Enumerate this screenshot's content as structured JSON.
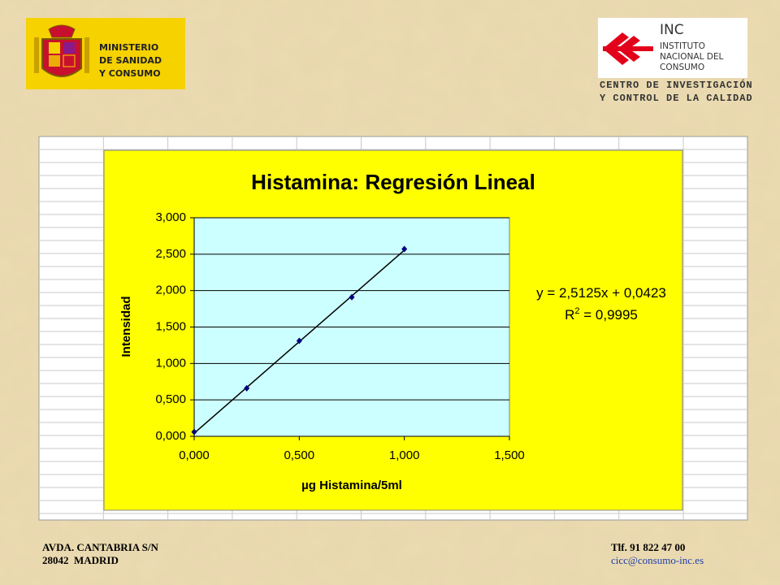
{
  "header": {
    "ministry": [
      "MINISTERIO",
      "DE SANIDAD",
      "Y CONSUMO"
    ],
    "inc": {
      "acronym": "INC",
      "name": [
        "INSTITUTO",
        "NACIONAL DEL",
        "CONSUMO"
      ]
    },
    "centre": [
      "CENTRO DE INVESTIGACIÓN",
      "Y CONTROL DE LA CALIDAD"
    ]
  },
  "chart_data": {
    "type": "scatter",
    "title": "Histamina: Regresión Lineal",
    "x_label": "µg Histamina/5ml",
    "y_label": "Intensidad",
    "x": [
      0,
      0.25,
      0.5,
      0.75,
      1
    ],
    "values": [
      0.06,
      0.66,
      1.31,
      1.91,
      2.57
    ],
    "color": "#000080",
    "xlim": [
      0,
      1.5
    ],
    "xticks": [
      {
        "value": 0,
        "label": "0,000"
      },
      {
        "value": 0.5,
        "label": "0,500"
      },
      {
        "value": 1,
        "label": "1,000"
      },
      {
        "value": 1.5,
        "label": "1,500"
      }
    ],
    "ylim": [
      0,
      3
    ],
    "yticks": [
      {
        "value": 0,
        "label": "0,000"
      },
      {
        "value": 0.5,
        "label": "0,500"
      },
      {
        "value": 1,
        "label": "1,000"
      },
      {
        "value": 1.5,
        "label": "1,500"
      },
      {
        "value": 2,
        "label": "2,000"
      },
      {
        "value": 2.5,
        "label": "2,500"
      },
      {
        "value": 3,
        "label": "3,000"
      }
    ],
    "grid": true,
    "trendline": {
      "slope": 2.5125,
      "intercept": 0.0423,
      "color": "#000000",
      "equation": "y = 2,5125x + 0,0423",
      "r_squared": {
        "symbol": "R",
        "exponent": "2",
        "text": " = 0,9995"
      }
    }
  },
  "footer": {
    "address": [
      "AVDA. CANTABRIA S/N",
      "28042  MADRID"
    ],
    "phone": "Tlf. 91 822 47 00",
    "email": "cicc@consumo-inc.es"
  }
}
